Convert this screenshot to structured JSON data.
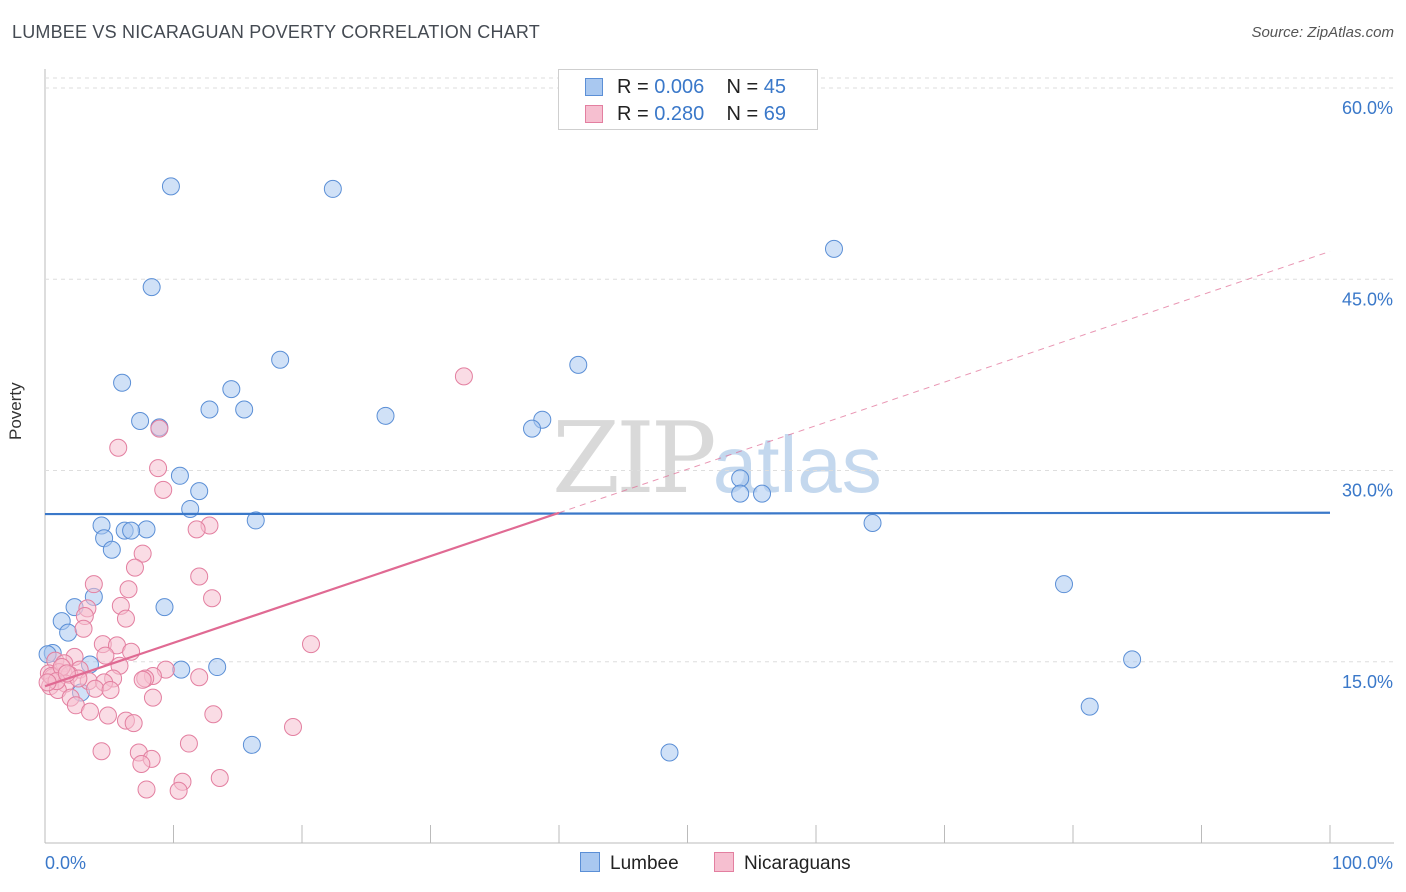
{
  "title": "LUMBEE VS NICARAGUAN POVERTY CORRELATION CHART",
  "source": "Source: ZipAtlas.com",
  "watermark": {
    "zip": "ZIP",
    "atlas": "atlas"
  },
  "legend": {
    "rows": [
      {
        "r_label": "R =",
        "r_value": "0.006",
        "n_label": "N =",
        "n_value": "45",
        "color": "#a9c8f0",
        "border": "#5b8fd6"
      },
      {
        "r_label": "R =",
        "r_value": "0.280",
        "n_label": "N =",
        "n_value": "69",
        "color": "#f6bfd0",
        "border": "#e37fa0"
      }
    ]
  },
  "bottom_legend": [
    {
      "label": "Lumbee",
      "color": "#a9c8f0",
      "border": "#5b8fd6"
    },
    {
      "label": "Nicaraguans",
      "color": "#f6bfd0",
      "border": "#e37fa0"
    }
  ],
  "chart_data": {
    "type": "scatter",
    "title": "LUMBEE VS NICARAGUAN POVERTY CORRELATION CHART",
    "xlabel": "",
    "ylabel": "Poverty",
    "xlim": [
      0,
      100
    ],
    "ylim": [
      0,
      63
    ],
    "x_tick_labels": [
      "0.0%",
      "100.0%"
    ],
    "y_ticks": [
      15,
      30,
      45,
      60
    ],
    "y_tick_labels": [
      "15.0%",
      "30.0%",
      "45.0%",
      "60.0%"
    ],
    "series": [
      {
        "name": "Lumbee",
        "color": "#a9c8f0",
        "edge": "#5b8fd6",
        "trend": {
          "x": [
            0,
            100
          ],
          "y": [
            25.8,
            25.9
          ],
          "color": "#3a78c9",
          "style": "solid"
        },
        "points": [
          {
            "x": 9.8,
            "y": 51.5
          },
          {
            "x": 22.4,
            "y": 51.3
          },
          {
            "x": 8.3,
            "y": 43.6
          },
          {
            "x": 61.4,
            "y": 46.6
          },
          {
            "x": 18.3,
            "y": 37.9
          },
          {
            "x": 41.5,
            "y": 37.5
          },
          {
            "x": 6.0,
            "y": 36.1
          },
          {
            "x": 14.5,
            "y": 35.6
          },
          {
            "x": 12.8,
            "y": 34.0
          },
          {
            "x": 15.5,
            "y": 34.0
          },
          {
            "x": 26.5,
            "y": 33.5
          },
          {
            "x": 38.7,
            "y": 33.2
          },
          {
            "x": 7.4,
            "y": 33.1
          },
          {
            "x": 8.9,
            "y": 32.6
          },
          {
            "x": 37.9,
            "y": 32.5
          },
          {
            "x": 10.5,
            "y": 28.8
          },
          {
            "x": 54.1,
            "y": 28.6
          },
          {
            "x": 12.0,
            "y": 27.6
          },
          {
            "x": 54.1,
            "y": 27.4
          },
          {
            "x": 55.8,
            "y": 27.4
          },
          {
            "x": 11.3,
            "y": 26.2
          },
          {
            "x": 16.4,
            "y": 25.3
          },
          {
            "x": 64.4,
            "y": 25.1
          },
          {
            "x": 4.4,
            "y": 24.9
          },
          {
            "x": 7.9,
            "y": 24.6
          },
          {
            "x": 6.2,
            "y": 24.5
          },
          {
            "x": 6.7,
            "y": 24.5
          },
          {
            "x": 4.6,
            "y": 23.9
          },
          {
            "x": 5.2,
            "y": 23.0
          },
          {
            "x": 79.3,
            "y": 20.3
          },
          {
            "x": 3.8,
            "y": 19.3
          },
          {
            "x": 2.3,
            "y": 18.5
          },
          {
            "x": 9.3,
            "y": 18.5
          },
          {
            "x": 1.3,
            "y": 17.4
          },
          {
            "x": 1.8,
            "y": 16.5
          },
          {
            "x": 0.6,
            "y": 14.9
          },
          {
            "x": 3.5,
            "y": 14.0
          },
          {
            "x": 84.6,
            "y": 14.4
          },
          {
            "x": 10.6,
            "y": 13.6
          },
          {
            "x": 13.4,
            "y": 13.8
          },
          {
            "x": 2.8,
            "y": 11.8
          },
          {
            "x": 81.3,
            "y": 10.7
          },
          {
            "x": 16.1,
            "y": 7.7
          },
          {
            "x": 48.6,
            "y": 7.1
          },
          {
            "x": 0.2,
            "y": 14.8
          }
        ]
      },
      {
        "name": "Nicaraguans",
        "color": "#f6bfd0",
        "edge": "#e37fa0",
        "trend": {
          "x": [
            0,
            40
          ],
          "y": [
            12.3,
            25.9
          ],
          "color": "#e06a93",
          "style": "solid",
          "extension": {
            "x": [
              40,
              100
            ],
            "y": [
              25.9,
              46.4
            ],
            "style": "dashed"
          }
        },
        "points": [
          {
            "x": 32.6,
            "y": 36.6
          },
          {
            "x": 8.9,
            "y": 32.5
          },
          {
            "x": 5.7,
            "y": 31.0
          },
          {
            "x": 8.8,
            "y": 29.4
          },
          {
            "x": 9.2,
            "y": 27.7
          },
          {
            "x": 12.8,
            "y": 24.9
          },
          {
            "x": 11.8,
            "y": 24.6
          },
          {
            "x": 7.6,
            "y": 22.7
          },
          {
            "x": 7.0,
            "y": 21.6
          },
          {
            "x": 12.0,
            "y": 20.9
          },
          {
            "x": 3.8,
            "y": 20.3
          },
          {
            "x": 6.5,
            "y": 19.9
          },
          {
            "x": 13.0,
            "y": 19.2
          },
          {
            "x": 5.9,
            "y": 18.6
          },
          {
            "x": 3.3,
            "y": 18.4
          },
          {
            "x": 3.1,
            "y": 17.8
          },
          {
            "x": 6.3,
            "y": 17.6
          },
          {
            "x": 3.0,
            "y": 16.8
          },
          {
            "x": 20.7,
            "y": 15.6
          },
          {
            "x": 4.5,
            "y": 15.6
          },
          {
            "x": 5.6,
            "y": 15.5
          },
          {
            "x": 6.7,
            "y": 15.0
          },
          {
            "x": 4.7,
            "y": 14.7
          },
          {
            "x": 2.3,
            "y": 14.6
          },
          {
            "x": 0.8,
            "y": 14.3
          },
          {
            "x": 1.5,
            "y": 14.1
          },
          {
            "x": 5.8,
            "y": 13.9
          },
          {
            "x": 9.4,
            "y": 13.6
          },
          {
            "x": 2.7,
            "y": 13.6
          },
          {
            "x": 1.1,
            "y": 13.4
          },
          {
            "x": 0.3,
            "y": 13.3
          },
          {
            "x": 1.9,
            "y": 13.2
          },
          {
            "x": 0.6,
            "y": 13.0
          },
          {
            "x": 8.4,
            "y": 13.1
          },
          {
            "x": 12.0,
            "y": 13.0
          },
          {
            "x": 5.3,
            "y": 12.9
          },
          {
            "x": 7.8,
            "y": 12.9
          },
          {
            "x": 3.4,
            "y": 12.7
          },
          {
            "x": 4.6,
            "y": 12.6
          },
          {
            "x": 7.6,
            "y": 12.8
          },
          {
            "x": 1.6,
            "y": 12.5
          },
          {
            "x": 0.4,
            "y": 12.3
          },
          {
            "x": 3.9,
            "y": 12.1
          },
          {
            "x": 5.1,
            "y": 12.0
          },
          {
            "x": 1.0,
            "y": 12.0
          },
          {
            "x": 2.0,
            "y": 11.4
          },
          {
            "x": 8.4,
            "y": 11.4
          },
          {
            "x": 2.4,
            "y": 10.8
          },
          {
            "x": 3.5,
            "y": 10.3
          },
          {
            "x": 13.1,
            "y": 10.1
          },
          {
            "x": 4.9,
            "y": 10.0
          },
          {
            "x": 6.3,
            "y": 9.6
          },
          {
            "x": 6.9,
            "y": 9.4
          },
          {
            "x": 19.3,
            "y": 9.1
          },
          {
            "x": 11.2,
            "y": 7.8
          },
          {
            "x": 4.4,
            "y": 7.2
          },
          {
            "x": 7.3,
            "y": 7.1
          },
          {
            "x": 8.3,
            "y": 6.6
          },
          {
            "x": 7.5,
            "y": 6.2
          },
          {
            "x": 13.6,
            "y": 5.1
          },
          {
            "x": 10.7,
            "y": 4.8
          },
          {
            "x": 7.9,
            "y": 4.2
          },
          {
            "x": 10.4,
            "y": 4.1
          },
          {
            "x": 0.5,
            "y": 13.1
          },
          {
            "x": 1.3,
            "y": 13.8
          },
          {
            "x": 0.9,
            "y": 12.7
          },
          {
            "x": 2.6,
            "y": 12.9
          },
          {
            "x": 1.7,
            "y": 13.3
          },
          {
            "x": 0.2,
            "y": 12.6
          }
        ]
      }
    ]
  }
}
